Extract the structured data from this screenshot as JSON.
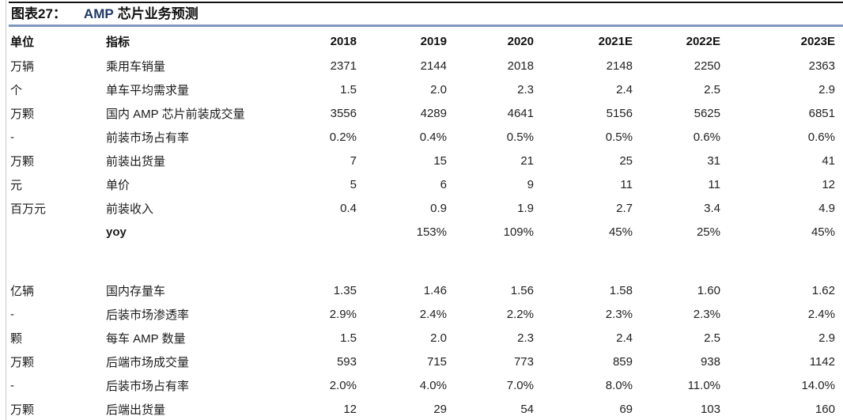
{
  "figure": {
    "title_label": "图表27：",
    "title_highlight": "AMP",
    "title_text": "芯片业务预测"
  },
  "colors": {
    "title_highlight": "#1f3864",
    "top_rule": "#111111",
    "blue_rule": "#7f97bd",
    "page_edge_line": "#c9c9c9",
    "text": "#1c1c1c"
  },
  "table": {
    "headers": [
      "单位",
      "指标",
      "2018",
      "2019",
      "2020",
      "2021E",
      "2022E",
      "2023E"
    ],
    "rows": [
      {
        "unit": "万辆",
        "indicator": "乘用车销量",
        "values": [
          "2371",
          "2144",
          "2018",
          "2148",
          "2250",
          "2363"
        ]
      },
      {
        "unit": "个",
        "indicator": "单车平均需求量",
        "values": [
          "1.5",
          "2.0",
          "2.3",
          "2.4",
          "2.5",
          "2.9"
        ]
      },
      {
        "unit": "万颗",
        "indicator": "国内 AMP 芯片前装成交量",
        "values": [
          "3556",
          "4289",
          "4641",
          "5156",
          "5625",
          "6851"
        ]
      },
      {
        "unit": "-",
        "indicator": "前装市场占有率",
        "values": [
          "0.2%",
          "0.4%",
          "0.5%",
          "0.5%",
          "0.6%",
          "0.6%"
        ]
      },
      {
        "unit": "万颗",
        "indicator": "前装出货量",
        "values": [
          "7",
          "15",
          "21",
          "25",
          "31",
          "41"
        ]
      },
      {
        "unit": "元",
        "indicator": "单价",
        "values": [
          "5",
          "6",
          "9",
          "11",
          "11",
          "12"
        ]
      },
      {
        "unit": "百万元",
        "indicator": "前装收入",
        "values": [
          "0.4",
          "0.9",
          "1.9",
          "2.7",
          "3.4",
          "4.9"
        ]
      },
      {
        "unit": "",
        "indicator": "yoy",
        "yoy": true,
        "values": [
          "",
          "153%",
          "109%",
          "45%",
          "25%",
          "45%"
        ]
      },
      {
        "spacer": true
      },
      {
        "unit": "亿辆",
        "indicator": "国内存量车",
        "values": [
          "1.35",
          "1.46",
          "1.56",
          "1.58",
          "1.60",
          "1.62"
        ]
      },
      {
        "unit": "-",
        "indicator": "后装市场渗透率",
        "values": [
          "2.9%",
          "2.4%",
          "2.2%",
          "2.3%",
          "2.3%",
          "2.4%"
        ]
      },
      {
        "unit": "颗",
        "indicator": "每车 AMP 数量",
        "values": [
          "1.5",
          "2.0",
          "2.3",
          "2.4",
          "2.5",
          "2.9"
        ]
      },
      {
        "unit": "万颗",
        "indicator": "后端市场成交量",
        "values": [
          "593",
          "715",
          "773",
          "859",
          "938",
          "1142"
        ]
      },
      {
        "unit": "-",
        "indicator": "后装市场占有率",
        "values": [
          "2.0%",
          "4.0%",
          "7.0%",
          "8.0%",
          "11.0%",
          "14.0%"
        ]
      },
      {
        "unit": "万颗",
        "indicator": "后端出货量",
        "values": [
          "12",
          "29",
          "54",
          "69",
          "103",
          "160"
        ]
      }
    ]
  }
}
